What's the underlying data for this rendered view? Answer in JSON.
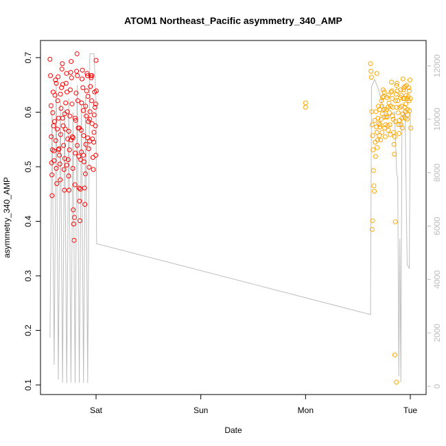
{
  "chart_data": {
    "type": "scatter",
    "title": "ATOM1 Northeast_Pacific asymmetry_340_AMP",
    "xlabel": "Date",
    "ylabel": "asymmetry_340_AMP",
    "x_axis": {
      "type": "date",
      "ticks": [
        {
          "value": 1,
          "label": "Sat"
        },
        {
          "value": 2,
          "label": "Sun"
        },
        {
          "value": 3,
          "label": "Mon"
        },
        {
          "value": 4,
          "label": "Tue"
        }
      ],
      "range": [
        0.45,
        4.05
      ]
    },
    "y_axis_left": {
      "range": [
        0.1,
        0.71
      ],
      "ticks": [
        0.1,
        0.2,
        0.3,
        0.4,
        0.5,
        0.6,
        0.7
      ]
    },
    "y_axis_right": {
      "range": [
        0,
        12500
      ],
      "ticks": [
        0,
        2000,
        4000,
        6000,
        8000,
        10000,
        12000
      ],
      "color": "#bdbdbd"
    },
    "grid": false,
    "colors": {
      "series_1": "#ff0000",
      "series_2": "#ffa500",
      "secondary_line": "#bdbdbd"
    },
    "series": [
      {
        "marker": "circle-open",
        "color": "#ff0000",
        "points": [
          [
            0.56,
            0.697
          ],
          [
            0.565,
            0.667
          ],
          [
            0.57,
            0.612
          ],
          [
            0.572,
            0.555
          ],
          [
            0.575,
            0.507
          ],
          [
            0.578,
            0.485
          ],
          [
            0.58,
            0.447
          ],
          [
            0.583,
            0.531
          ],
          [
            0.586,
            0.599
          ],
          [
            0.59,
            0.637
          ],
          [
            0.594,
            0.575
          ],
          [
            0.598,
            0.529
          ],
          [
            0.6,
            0.511
          ],
          [
            0.604,
            0.583
          ],
          [
            0.608,
            0.631
          ],
          [
            0.612,
            0.659
          ],
          [
            0.615,
            0.548
          ],
          [
            0.62,
            0.497
          ],
          [
            0.625,
            0.469
          ],
          [
            0.63,
            0.569
          ],
          [
            0.634,
            0.621
          ],
          [
            0.638,
            0.665
          ],
          [
            0.642,
            0.589
          ],
          [
            0.646,
            0.533
          ],
          [
            0.65,
            0.521
          ],
          [
            0.654,
            0.505
          ],
          [
            0.658,
            0.476
          ],
          [
            0.662,
            0.559
          ],
          [
            0.666,
            0.607
          ],
          [
            0.67,
            0.645
          ],
          [
            0.674,
            0.679
          ],
          [
            0.678,
            0.689
          ],
          [
            0.682,
            0.651
          ],
          [
            0.686,
            0.575
          ],
          [
            0.69,
            0.539
          ],
          [
            0.694,
            0.495
          ],
          [
            0.698,
            0.457
          ],
          [
            0.702,
            0.515
          ],
          [
            0.706,
            0.569
          ],
          [
            0.71,
            0.617
          ],
          [
            0.714,
            0.653
          ],
          [
            0.718,
            0.671
          ],
          [
            0.722,
            0.637
          ],
          [
            0.726,
            0.601
          ],
          [
            0.73,
            0.551
          ],
          [
            0.734,
            0.513
          ],
          [
            0.738,
            0.483
          ],
          [
            0.742,
            0.457
          ],
          [
            0.746,
            0.531
          ],
          [
            0.75,
            0.593
          ],
          [
            0.754,
            0.641
          ],
          [
            0.758,
            0.673
          ],
          [
            0.762,
            0.693
          ],
          [
            0.766,
            0.663
          ],
          [
            0.77,
            0.615
          ],
          [
            0.774,
            0.555
          ],
          [
            0.778,
            0.497
          ],
          [
            0.782,
            0.421
          ],
          [
            0.786,
            0.395
          ],
          [
            0.79,
            0.365
          ],
          [
            0.794,
            0.407
          ],
          [
            0.798,
            0.467
          ],
          [
            0.802,
            0.525
          ],
          [
            0.806,
            0.585
          ],
          [
            0.81,
            0.635
          ],
          [
            0.814,
            0.675
          ],
          [
            0.818,
            0.707
          ],
          [
            0.822,
            0.667
          ],
          [
            0.826,
            0.621
          ],
          [
            0.83,
            0.571
          ],
          [
            0.834,
            0.519
          ],
          [
            0.838,
            0.461
          ],
          [
            0.842,
            0.437
          ],
          [
            0.846,
            0.401
          ],
          [
            0.85,
            0.459
          ],
          [
            0.854,
            0.513
          ],
          [
            0.858,
            0.567
          ],
          [
            0.862,
            0.617
          ],
          [
            0.866,
            0.661
          ],
          [
            0.87,
            0.677
          ],
          [
            0.874,
            0.645
          ],
          [
            0.878,
            0.603
          ],
          [
            0.882,
            0.557
          ],
          [
            0.886,
            0.509
          ],
          [
            0.89,
            0.461
          ],
          [
            0.894,
            0.431
          ],
          [
            0.898,
            0.487
          ],
          [
            0.902,
            0.541
          ],
          [
            0.906,
            0.593
          ],
          [
            0.91,
            0.639
          ],
          [
            0.914,
            0.671
          ],
          [
            0.918,
            0.667
          ],
          [
            0.922,
            0.629
          ],
          [
            0.926,
            0.583
          ],
          [
            0.93,
            0.533
          ],
          [
            0.934,
            0.499
          ],
          [
            0.938,
            0.547
          ],
          [
            0.942,
            0.601
          ],
          [
            0.946,
            0.647
          ],
          [
            0.95,
            0.667
          ],
          [
            0.954,
            0.663
          ],
          [
            0.958,
            0.621
          ],
          [
            0.962,
            0.579
          ],
          [
            0.966,
            0.551
          ],
          [
            0.97,
            0.517
          ],
          [
            0.974,
            0.495
          ],
          [
            0.978,
            0.545
          ],
          [
            0.982,
            0.595
          ],
          [
            0.986,
            0.637
          ],
          [
            0.99,
            0.609
          ],
          [
            0.994,
            0.575
          ],
          [
            0.998,
            0.521
          ],
          [
            1.0,
            0.695
          ],
          [
            1.002,
            0.639
          ],
          [
            0.62,
            0.653
          ],
          [
            0.66,
            0.633
          ],
          [
            0.7,
            0.597
          ],
          [
            0.74,
            0.565
          ],
          [
            0.78,
            0.553
          ],
          [
            0.82,
            0.539
          ],
          [
            0.86,
            0.527
          ],
          [
            0.9,
            0.611
          ],
          [
            0.94,
            0.587
          ],
          [
            0.98,
            0.563
          ],
          [
            0.64,
            0.531
          ],
          [
            0.68,
            0.589
          ],
          [
            0.72,
            0.503
          ],
          [
            0.76,
            0.549
          ],
          [
            0.8,
            0.589
          ],
          [
            0.84,
            0.571
          ],
          [
            0.88,
            0.521
          ],
          [
            0.92,
            0.553
          ],
          [
            0.96,
            0.667
          ],
          [
            0.996,
            0.615
          ]
        ]
      },
      {
        "marker": "circle-open",
        "color": "#ffa500",
        "points": [
          [
            3.0,
            0.617
          ],
          [
            3.0,
            0.609
          ],
          [
            3.62,
            0.689
          ],
          [
            3.625,
            0.675
          ],
          [
            3.628,
            0.664
          ],
          [
            3.632,
            0.601
          ],
          [
            3.636,
            0.577
          ],
          [
            3.64,
            0.557
          ],
          [
            3.644,
            0.531
          ],
          [
            3.648,
            0.493
          ],
          [
            3.652,
            0.465
          ],
          [
            3.656,
            0.455
          ],
          [
            3.66,
            0.585
          ],
          [
            3.664,
            0.545
          ],
          [
            3.668,
            0.519
          ],
          [
            3.672,
            0.601
          ],
          [
            3.676,
            0.573
          ],
          [
            3.68,
            0.563
          ],
          [
            3.684,
            0.535
          ],
          [
            3.688,
            0.549
          ],
          [
            3.692,
            0.589
          ],
          [
            3.696,
            0.611
          ],
          [
            3.7,
            0.579
          ],
          [
            3.704,
            0.557
          ],
          [
            3.708,
            0.605
          ],
          [
            3.712,
            0.577
          ],
          [
            3.716,
            0.549
          ],
          [
            3.72,
            0.587
          ],
          [
            3.724,
            0.621
          ],
          [
            3.728,
            0.611
          ],
          [
            3.732,
            0.597
          ],
          [
            3.736,
            0.627
          ],
          [
            3.74,
            0.641
          ],
          [
            3.744,
            0.629
          ],
          [
            3.748,
            0.605
          ],
          [
            3.752,
            0.591
          ],
          [
            3.756,
            0.571
          ],
          [
            3.76,
            0.555
          ],
          [
            3.764,
            0.577
          ],
          [
            3.768,
            0.591
          ],
          [
            3.772,
            0.605
          ],
          [
            3.776,
            0.627
          ],
          [
            3.78,
            0.591
          ],
          [
            3.784,
            0.575
          ],
          [
            3.788,
            0.609
          ],
          [
            3.792,
            0.631
          ],
          [
            3.796,
            0.617
          ],
          [
            3.8,
            0.599
          ],
          [
            3.804,
            0.577
          ],
          [
            3.808,
            0.559
          ],
          [
            3.812,
            0.611
          ],
          [
            3.816,
            0.637
          ],
          [
            3.82,
            0.655
          ],
          [
            3.824,
            0.639
          ],
          [
            3.828,
            0.625
          ],
          [
            3.832,
            0.609
          ],
          [
            3.836,
            0.587
          ],
          [
            3.84,
            0.563
          ],
          [
            3.844,
            0.541
          ],
          [
            3.848,
            0.523
          ],
          [
            3.852,
            0.555
          ],
          [
            3.856,
            0.583
          ],
          [
            3.86,
            0.621
          ],
          [
            3.864,
            0.633
          ],
          [
            3.868,
            0.649
          ],
          [
            3.872,
            0.653
          ],
          [
            3.876,
            0.639
          ],
          [
            3.88,
            0.621
          ],
          [
            3.884,
            0.599
          ],
          [
            3.888,
            0.577
          ],
          [
            3.892,
            0.561
          ],
          [
            3.896,
            0.585
          ],
          [
            3.9,
            0.609
          ],
          [
            3.904,
            0.627
          ],
          [
            3.908,
            0.641
          ],
          [
            3.912,
            0.631
          ],
          [
            3.916,
            0.611
          ],
          [
            3.92,
            0.589
          ],
          [
            3.924,
            0.571
          ],
          [
            3.928,
            0.597
          ],
          [
            3.932,
            0.625
          ],
          [
            3.936,
            0.641
          ],
          [
            3.94,
            0.645
          ],
          [
            3.944,
            0.625
          ],
          [
            3.948,
            0.609
          ],
          [
            3.952,
            0.589
          ],
          [
            3.956,
            0.615
          ],
          [
            3.96,
            0.631
          ],
          [
            3.964,
            0.649
          ],
          [
            3.968,
            0.625
          ],
          [
            3.972,
            0.605
          ],
          [
            3.976,
            0.595
          ],
          [
            3.98,
            0.629
          ],
          [
            3.984,
            0.645
          ],
          [
            3.988,
            0.621
          ],
          [
            3.992,
            0.603
          ],
          [
            3.996,
            0.659
          ],
          [
            4.0,
            0.625
          ],
          [
            4.004,
            0.571
          ],
          [
            3.64,
            0.401
          ],
          [
            3.636,
            0.385
          ],
          [
            3.68,
            0.671
          ],
          [
            3.852,
            0.155
          ],
          [
            3.868,
            0.105
          ],
          [
            3.857,
            0.399
          ],
          [
            3.95,
            0.647
          ],
          [
            3.73,
            0.563
          ],
          [
            3.79,
            0.567
          ],
          [
            3.83,
            0.593
          ],
          [
            3.87,
            0.609
          ],
          [
            3.91,
            0.577
          ],
          [
            3.95,
            0.601
          ],
          [
            3.99,
            0.639
          ],
          [
            3.75,
            0.637
          ],
          [
            3.93,
            0.661
          ],
          [
            3.97,
            0.587
          ],
          [
            3.71,
            0.573
          ]
        ]
      }
    ],
    "secondary_line": [
      [
        0.56,
        0.187
      ],
      [
        0.58,
        0.61
      ],
      [
        0.6,
        0.137
      ],
      [
        0.62,
        0.655
      ],
      [
        0.64,
        0.11
      ],
      [
        0.66,
        0.62
      ],
      [
        0.68,
        0.104
      ],
      [
        0.7,
        0.605
      ],
      [
        0.72,
        0.104
      ],
      [
        0.74,
        0.625
      ],
      [
        0.76,
        0.104
      ],
      [
        0.78,
        0.6
      ],
      [
        0.8,
        0.104
      ],
      [
        0.82,
        0.65
      ],
      [
        0.84,
        0.104
      ],
      [
        0.86,
        0.615
      ],
      [
        0.88,
        0.104
      ],
      [
        0.9,
        0.627
      ],
      [
        0.92,
        0.104
      ],
      [
        0.94,
        0.707
      ],
      [
        0.96,
        0.707
      ],
      [
        0.98,
        0.707
      ],
      [
        1.0,
        0.62
      ],
      [
        1.005,
        0.359
      ],
      [
        3.62,
        0.229
      ],
      [
        3.63,
        0.647
      ],
      [
        3.66,
        0.66
      ],
      [
        3.7,
        0.64
      ],
      [
        3.75,
        0.6
      ],
      [
        3.8,
        0.595
      ],
      [
        3.85,
        0.6
      ],
      [
        3.87,
        0.486
      ],
      [
        3.88,
        0.481
      ],
      [
        3.89,
        0.116
      ],
      [
        3.9,
        0.368
      ],
      [
        3.91,
        0.105
      ],
      [
        3.92,
        0.59
      ],
      [
        3.95,
        0.6
      ],
      [
        3.97,
        0.32
      ],
      [
        3.99,
        0.314
      ],
      [
        4.0,
        0.6
      ]
    ]
  }
}
